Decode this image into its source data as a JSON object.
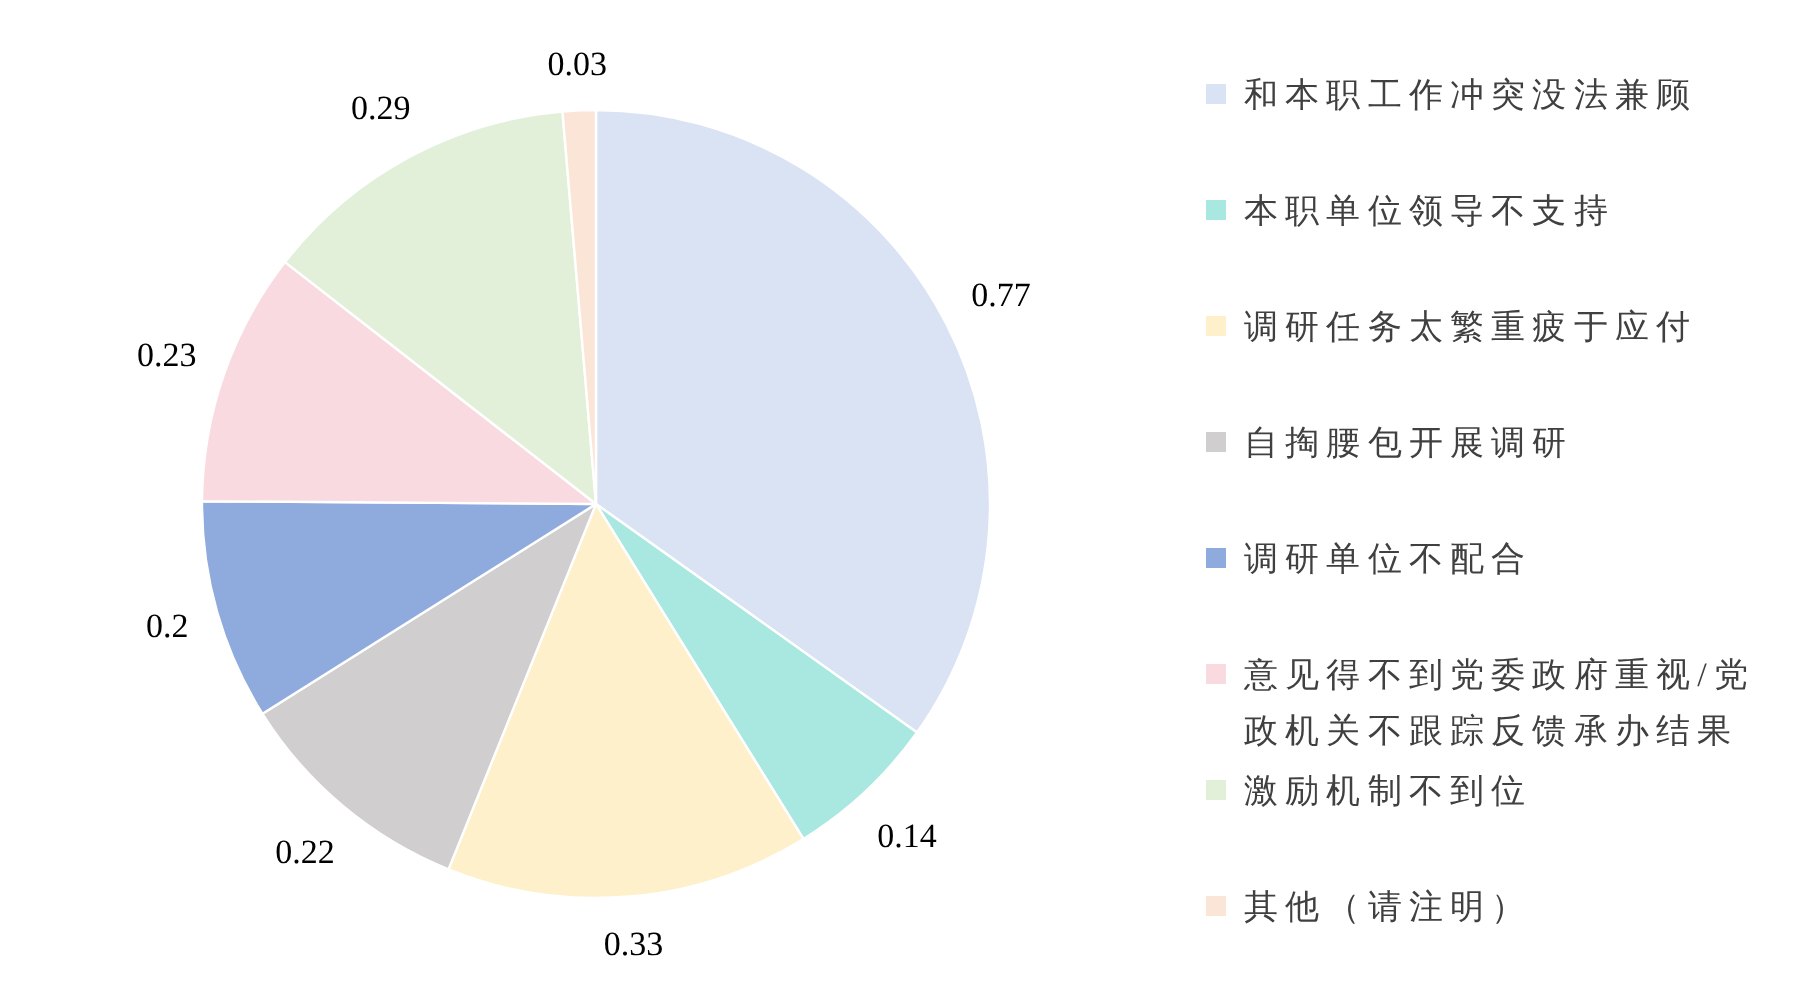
{
  "chart_data": {
    "type": "pie",
    "categories": [
      "和本职工作冲突没法兼顾",
      "本职单位领导不支持",
      "调研任务太繁重疲于应付",
      "自掏腰包开展调研",
      "调研单位不配合",
      "意见得不到党委政府重视/党政机关不跟踪反馈承办结果",
      "激励机制不到位",
      "其他（请注明）"
    ],
    "values": [
      0.77,
      0.14,
      0.33,
      0.22,
      0.2,
      0.23,
      0.29,
      0.03
    ],
    "colors": [
      "#dae3f3",
      "#a9e8e1",
      "#fdf0cb",
      "#d0cece",
      "#8faadc",
      "#f8dae0",
      "#e2f0d9",
      "#fbe5d6"
    ],
    "data_labels": true,
    "legend": "right"
  }
}
